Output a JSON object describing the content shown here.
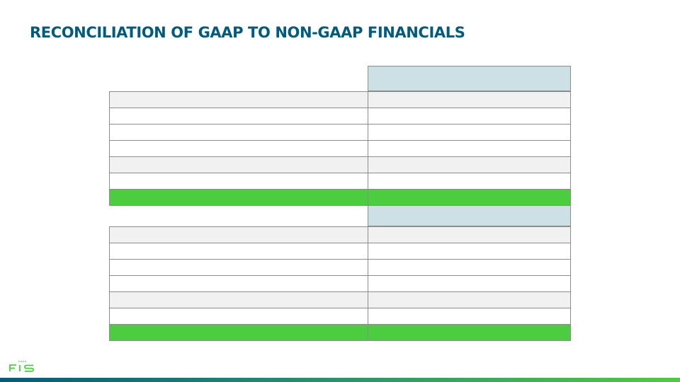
{
  "title": "RECONCILIATION OF GAAP TO NON-GAAP FINANCIALS",
  "logo": {
    "text": "FIS",
    "icon": "fis-logo"
  },
  "colors": {
    "title": "#015b7e",
    "header_fill": "#cce0e6",
    "total_fill": "#4ccd3f",
    "row_light": "#f1f1f1"
  },
  "tables": [
    {
      "header": "",
      "rows": [
        {
          "label": "",
          "value": "",
          "style": "light"
        },
        {
          "label": "",
          "value": "",
          "style": "white"
        },
        {
          "label": "",
          "value": "",
          "style": "white"
        },
        {
          "label": "",
          "value": "",
          "style": "white"
        },
        {
          "label": "",
          "value": "",
          "style": "light"
        },
        {
          "label": "",
          "value": "",
          "style": "white"
        },
        {
          "label": "",
          "value": "",
          "style": "total"
        }
      ]
    },
    {
      "header": "",
      "rows": [
        {
          "label": "",
          "value": "",
          "style": "light"
        },
        {
          "label": "",
          "value": "",
          "style": "white"
        },
        {
          "label": "",
          "value": "",
          "style": "white"
        },
        {
          "label": "",
          "value": "",
          "style": "white"
        },
        {
          "label": "",
          "value": "",
          "style": "light"
        },
        {
          "label": "",
          "value": "",
          "style": "white"
        },
        {
          "label": "",
          "value": "",
          "style": "total"
        }
      ]
    }
  ]
}
